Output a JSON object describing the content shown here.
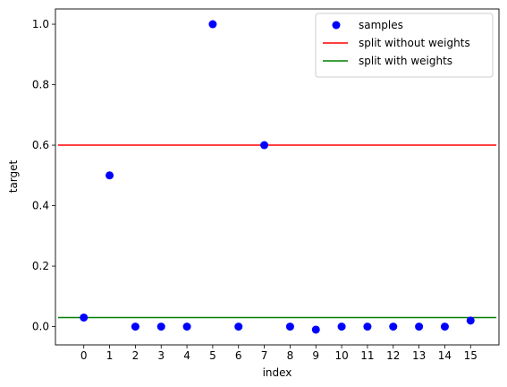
{
  "chart_data": {
    "type": "scatter",
    "title": "",
    "xlabel": "index",
    "ylabel": "target",
    "xlim": [
      -1.1,
      16.1
    ],
    "ylim": [
      -0.0605,
      1.0505
    ],
    "xticks": [
      "0",
      "1",
      "2",
      "3",
      "4",
      "5",
      "6",
      "7",
      "8",
      "9",
      "10",
      "11",
      "12",
      "13",
      "14",
      "15"
    ],
    "yticks": [
      "0.0",
      "0.2",
      "0.4",
      "0.6",
      "0.8",
      "1.0"
    ],
    "grid": false,
    "legend_position": "top-right",
    "series": [
      {
        "name": "samples",
        "kind": "points",
        "color": "#0000ff",
        "x": [
          0,
          1,
          2,
          3,
          4,
          5,
          6,
          7,
          8,
          9,
          10,
          11,
          12,
          13,
          14,
          15
        ],
        "y": [
          0.03,
          0.5,
          0.0,
          0.0,
          0.0,
          1.0,
          0.0,
          0.6,
          0.0,
          -0.01,
          0.0,
          0.0,
          0.0,
          0.0,
          0.0,
          0.02
        ]
      },
      {
        "name": "split without weights",
        "kind": "line",
        "color": "#ff0000",
        "x": [
          -1,
          16
        ],
        "y": [
          0.6,
          0.6
        ]
      },
      {
        "name": "split with weights",
        "kind": "line",
        "color": "#008000",
        "x": [
          -1,
          16
        ],
        "y": [
          0.03,
          0.03
        ]
      }
    ]
  }
}
